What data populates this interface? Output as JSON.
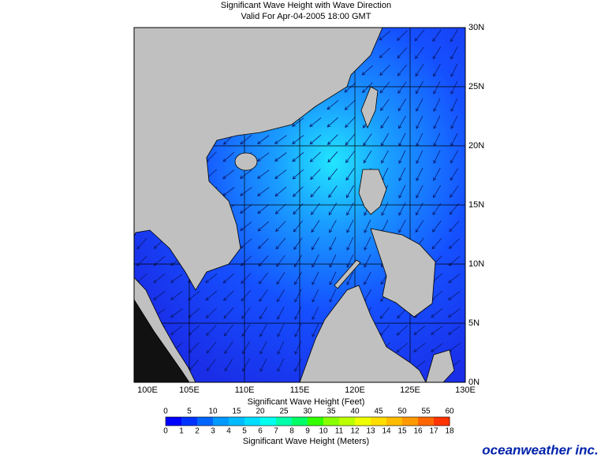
{
  "header": {
    "title": "Significant Wave Height with Wave Direction",
    "subtitle": "Valid For Apr-04-2005 18:00 GMT"
  },
  "map": {
    "longitude_labels": [
      "100E",
      "105E",
      "110E",
      "115E",
      "120E",
      "125E",
      "130E"
    ],
    "latitude_labels": [
      "30N",
      "25N",
      "20N",
      "15N",
      "10N",
      "5N",
      "0N"
    ]
  },
  "legend": {
    "feet_title": "Significant Wave Height (Feet)",
    "feet_ticks": [
      0,
      5,
      10,
      15,
      20,
      25,
      30,
      35,
      40,
      45,
      50,
      55,
      60
    ],
    "meters_ticks": [
      0,
      1,
      2,
      3,
      4,
      5,
      6,
      7,
      8,
      9,
      10,
      11,
      12,
      13,
      14,
      15,
      16,
      17,
      18
    ],
    "meters_title": "Significant Wave Height (Meters)"
  },
  "brand": "oceanweather inc."
}
